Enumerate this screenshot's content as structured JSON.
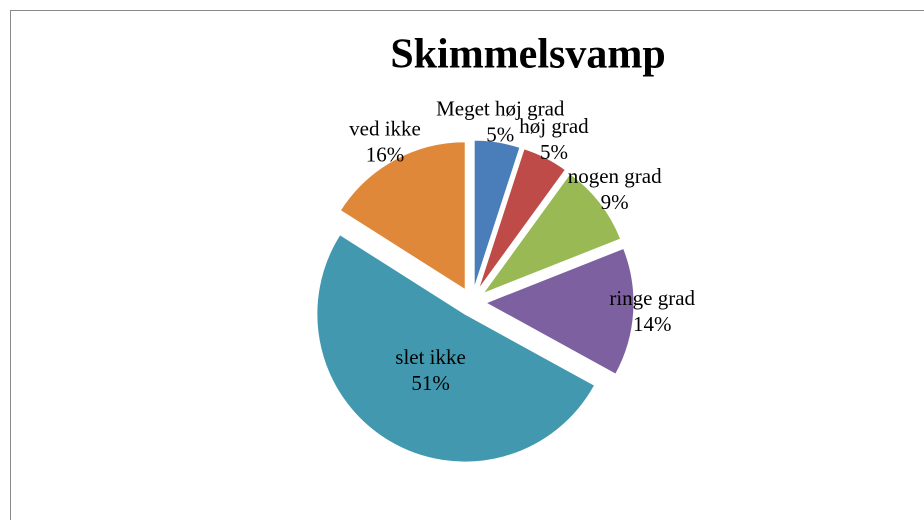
{
  "chart_data": {
    "type": "pie",
    "title": "Skimmelsvamp",
    "categories": [
      "Meget høj grad",
      "høj grad",
      "nogen grad",
      "ringe grad",
      "slet ikke",
      "ved ikke"
    ],
    "values": [
      5,
      5,
      9,
      14,
      51,
      16
    ],
    "value_labels": [
      "5%",
      "5%",
      "9%",
      "14%",
      "51%",
      "16%"
    ],
    "colors": [
      "#4a7ebb",
      "#be4b48",
      "#98b954",
      "#7d60a0",
      "#4198af",
      "#e0883a"
    ]
  }
}
